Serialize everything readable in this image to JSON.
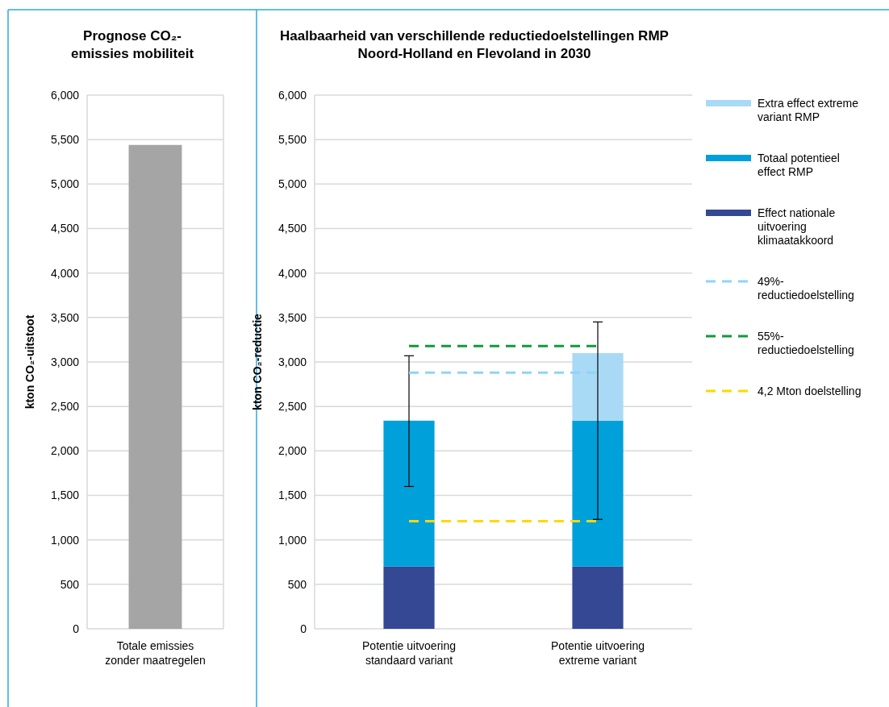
{
  "chart_data": [
    {
      "type": "bar",
      "title": "Prognose CO₂-emissies mobiliteit",
      "ylabel": "kton CO₂-uitstoot",
      "categories": [
        "Totale emissies zonder maatregelen"
      ],
      "values": [
        5440
      ],
      "color": "#a5a5a5",
      "ylim": [
        0,
        6000
      ],
      "yticks": [
        {
          "value": 0,
          "label": "0"
        },
        {
          "value": 500,
          "label": "500"
        },
        {
          "value": 1000,
          "label": "1,000"
        },
        {
          "value": 1500,
          "label": "1,500"
        },
        {
          "value": 2000,
          "label": "2,000"
        },
        {
          "value": 2500,
          "label": "2,500"
        },
        {
          "value": 3000,
          "label": "3,000"
        },
        {
          "value": 3500,
          "label": "3,500"
        },
        {
          "value": 4000,
          "label": "4,000"
        },
        {
          "value": 4500,
          "label": "4,500"
        },
        {
          "value": 5000,
          "label": "5,000"
        },
        {
          "value": 5500,
          "label": "5,500"
        },
        {
          "value": 6000,
          "label": "6,000"
        }
      ],
      "grid": "y"
    },
    {
      "type": "bar",
      "title": "Haalbaarheid van verschillende reductiedoelstellingen RMP Noord-Holland en Flevoland in 2030",
      "ylabel": "kton CO₂-reductie",
      "categories": [
        "Potentie uitvoering standaard variant",
        "Potentie uitvoering extreme variant"
      ],
      "stacked": true,
      "legend": "right",
      "ylim": [
        0,
        6000
      ],
      "yticks": [
        {
          "value": 0,
          "label": "0"
        },
        {
          "value": 500,
          "label": "500"
        },
        {
          "value": 1000,
          "label": "1,000"
        },
        {
          "value": 1500,
          "label": "1,500"
        },
        {
          "value": 2000,
          "label": "2,000"
        },
        {
          "value": 2500,
          "label": "2,500"
        },
        {
          "value": 3000,
          "label": "3,000"
        },
        {
          "value": 3500,
          "label": "3,500"
        },
        {
          "value": 4000,
          "label": "4,000"
        },
        {
          "value": 4500,
          "label": "4,500"
        },
        {
          "value": 5000,
          "label": "5,000"
        },
        {
          "value": 5500,
          "label": "5,500"
        },
        {
          "value": 6000,
          "label": "6,000"
        }
      ],
      "grid": "y",
      "series": [
        {
          "name": "Effect nationale uitvoering klimaatakkoord",
          "color": "#344893",
          "values": [
            700,
            700
          ]
        },
        {
          "name": "Totaal potentieel effect RMP",
          "color": "#00a0db",
          "values": [
            1640,
            1640
          ],
          "errors": [
            [
              1600,
              3070
            ],
            [
              1230,
              3450
            ]
          ]
        },
        {
          "name": "Extra effect extreme variant RMP",
          "color": "#a9daf5",
          "values": [
            null,
            760
          ]
        },
        {
          "name": "49%-reductiedoelstelling",
          "type": "line",
          "line_style": "dashed",
          "marker": "none",
          "color": "#8fd3fb",
          "values": [
            2880,
            2880
          ]
        },
        {
          "name": "55%-reductiedoelstelling",
          "type": "line",
          "line_style": "dashed",
          "marker": "none",
          "color": "#119a3a",
          "values": [
            3180,
            3180
          ]
        },
        {
          "name": "4,2 Mton doelstelling",
          "type": "line",
          "line_style": "dashed",
          "marker": "none",
          "color": "#ffd800",
          "values": [
            1210,
            1210
          ]
        }
      ]
    }
  ]
}
